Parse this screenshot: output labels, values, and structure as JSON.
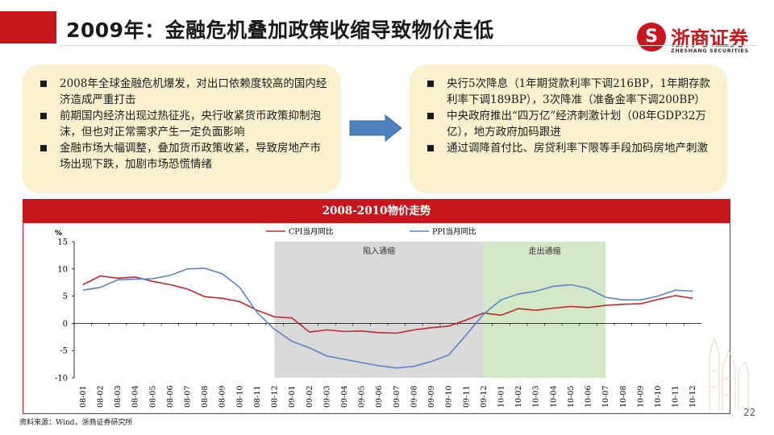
{
  "header": {
    "title": "2009年：金融危机叠加政策收缩导致物价走低",
    "logo_cn": "浙商证券",
    "logo_en": "ZHESHANG SECURITIES",
    "logo_icon": "zheshang-logo-icon"
  },
  "left_box": {
    "items": [
      "2008年全球金融危机爆发，对出口依赖度较高的国内经济造成严重打击",
      "前期国内经济出现过热征兆，央行收紧货币政策抑制泡沫，但也对正常需求产生一定负面影响",
      "金融市场大幅调整，叠加货币政策收紧，导致房地产市场出现下跌，加剧市场恐慌情绪"
    ]
  },
  "right_box": {
    "items": [
      "央行5次降息（1年期贷款利率下调216BP，1年期存款利率下调189BP），3次降准（准备金率下调200BP）",
      "中央政府推出“四万亿”经济刺激计划（08年GDP32万亿），地方政府加码跟进",
      "通过调降首付比、房贷利率下限等手段加码房地产刺激"
    ]
  },
  "chart_header": "2008-2010物价走势",
  "chart_data": {
    "type": "line",
    "categories": [
      "08-01",
      "08-02",
      "08-03",
      "08-04",
      "08-05",
      "08-06",
      "08-07",
      "08-08",
      "08-09",
      "08-10",
      "08-11",
      "08-12",
      "09-01",
      "09-02",
      "09-03",
      "09-04",
      "09-05",
      "09-06",
      "09-07",
      "09-08",
      "09-09",
      "09-10",
      "09-11",
      "09-12",
      "10-01",
      "10-02",
      "10-03",
      "10-04",
      "10-05",
      "10-06",
      "10-07",
      "10-08",
      "10-09",
      "10-10",
      "10-11",
      "10-12"
    ],
    "series": [
      {
        "name": "CPI当月同比",
        "color": "#c0282d",
        "values": [
          7.1,
          8.7,
          8.3,
          8.5,
          7.7,
          7.1,
          6.3,
          4.9,
          4.6,
          4.0,
          2.4,
          1.2,
          1.0,
          -1.6,
          -1.2,
          -1.5,
          -1.4,
          -1.7,
          -1.8,
          -1.2,
          -0.8,
          -0.5,
          0.6,
          1.9,
          1.5,
          2.7,
          2.4,
          2.8,
          3.1,
          2.9,
          3.3,
          3.5,
          3.6,
          4.4,
          5.1,
          4.6
        ]
      },
      {
        "name": "PPI当月同比",
        "color": "#5b84c4",
        "values": [
          6.1,
          6.6,
          8.0,
          8.1,
          8.2,
          8.8,
          10.0,
          10.1,
          9.1,
          6.6,
          2.0,
          -1.1,
          -3.3,
          -4.5,
          -6.0,
          -6.6,
          -7.2,
          -7.8,
          -8.2,
          -7.9,
          -7.0,
          -5.8,
          -2.1,
          1.7,
          4.3,
          5.4,
          5.9,
          6.8,
          7.1,
          6.4,
          4.8,
          4.3,
          4.3,
          5.0,
          6.1,
          5.9
        ]
      }
    ],
    "ylim": [
      -10,
      15
    ],
    "yticks": [
      -10,
      -5,
      0,
      5,
      10,
      15
    ],
    "ytick_labels": [
      "-10",
      "-5",
      "0",
      "5",
      "10",
      "15"
    ],
    "y_unit": "%",
    "shaded_regions": [
      {
        "label": "陷入通缩",
        "from": "08-12",
        "to": "09-12",
        "color": "#d9d9d9"
      },
      {
        "label": "走出通缩",
        "from": "09-12",
        "to": "10-07",
        "color": "#d3e8c6"
      }
    ],
    "legend_position": "top-center",
    "grid": false
  },
  "footer": {
    "source": "资料来源：Wind，浙商证券研究所",
    "page_number": "22"
  }
}
